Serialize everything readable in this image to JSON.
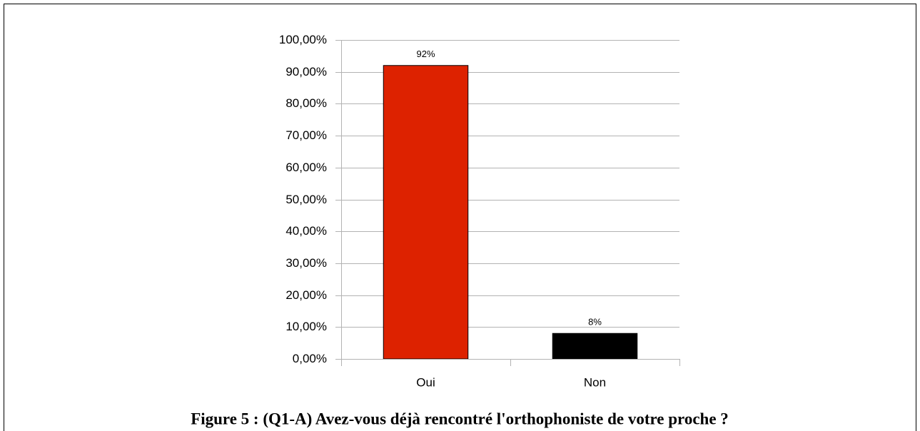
{
  "chart_data": {
    "type": "bar",
    "title": "Figure 5 : (Q1-A) Avez-vous déjà rencontré l'orthophoniste de votre proche ?",
    "categories": [
      "Oui",
      "Non"
    ],
    "values": [
      92,
      8
    ],
    "value_labels": [
      "92%",
      "8%"
    ],
    "colors": [
      "#dd2200",
      "#000000"
    ],
    "ylim": [
      0,
      100
    ],
    "yticks": [
      {
        "value": 0,
        "label": "0,00%"
      },
      {
        "value": 10,
        "label": "10,00%"
      },
      {
        "value": 20,
        "label": "20,00%"
      },
      {
        "value": 30,
        "label": "30,00%"
      },
      {
        "value": 40,
        "label": "40,00%"
      },
      {
        "value": 50,
        "label": "50,00%"
      },
      {
        "value": 60,
        "label": "60,00%"
      },
      {
        "value": 70,
        "label": "70,00%"
      },
      {
        "value": 80,
        "label": "80,00%"
      },
      {
        "value": 90,
        "label": "90,00%"
      },
      {
        "value": 100,
        "label": "100,00%"
      }
    ],
    "grid": true
  }
}
